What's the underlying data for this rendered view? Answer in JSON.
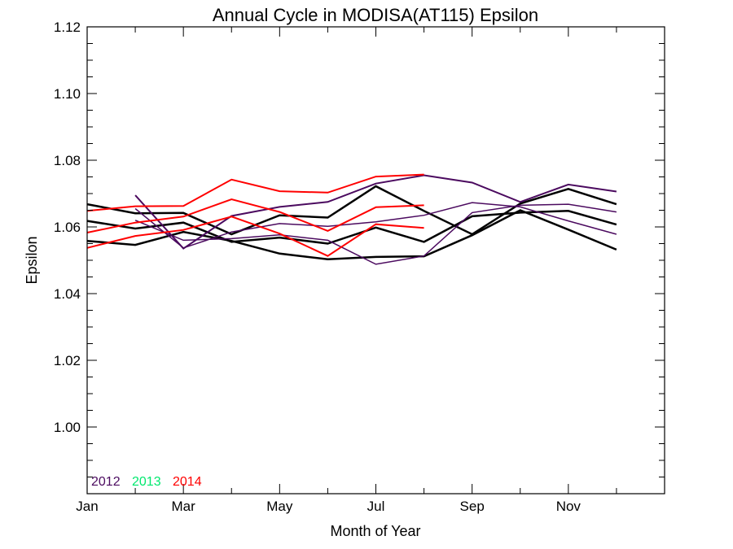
{
  "chart_data": {
    "type": "line",
    "title": "Annual Cycle in MODISA(AT115) Epsilon",
    "xlabel": "Month of Year",
    "ylabel": "Epsilon",
    "xlim": [
      1,
      13
    ],
    "ylim": [
      0.98,
      1.12
    ],
    "x_ticks": [
      {
        "value": 1,
        "label": "Jan"
      },
      {
        "value": 3,
        "label": "Mar"
      },
      {
        "value": 5,
        "label": "May"
      },
      {
        "value": 7,
        "label": "Jul"
      },
      {
        "value": 9,
        "label": "Sep"
      },
      {
        "value": 11,
        "label": "Nov"
      }
    ],
    "y_ticks": [
      {
        "value": 1.0,
        "label": "1.00"
      },
      {
        "value": 1.02,
        "label": "1.02"
      },
      {
        "value": 1.04,
        "label": "1.04"
      },
      {
        "value": 1.06,
        "label": "1.06"
      },
      {
        "value": 1.08,
        "label": "1.08"
      },
      {
        "value": 1.1,
        "label": "1.10"
      },
      {
        "value": 1.12,
        "label": "1.12"
      }
    ],
    "legend": {
      "placement": "bottom-left",
      "entries": [
        {
          "label": "2012",
          "color": "#4b0a5f"
        },
        {
          "label": "2013",
          "color": "#00e86e"
        },
        {
          "label": "2014",
          "color": "#ff0000"
        }
      ]
    },
    "series": [
      {
        "color": "#000000",
        "width": 2.5,
        "x": [
          1,
          2,
          3,
          4,
          5,
          6,
          7,
          8,
          9,
          10,
          11,
          12
        ],
        "y": [
          1.0668,
          1.0641,
          1.0642,
          1.0578,
          1.0635,
          1.0628,
          1.0722,
          1.0648,
          1.0578,
          1.067,
          1.0714,
          1.0668
        ]
      },
      {
        "color": "#000000",
        "width": 2.5,
        "x": [
          1,
          2,
          3,
          4,
          5,
          6,
          7,
          8,
          9,
          10,
          11,
          12
        ],
        "y": [
          1.0618,
          1.0595,
          1.0613,
          1.0555,
          1.0568,
          1.055,
          1.0598,
          1.0555,
          1.0632,
          1.0643,
          1.0648,
          1.0607
        ]
      },
      {
        "color": "#000000",
        "width": 2.5,
        "x": [
          1,
          2,
          3,
          4,
          5,
          6,
          7,
          8,
          9,
          10,
          11,
          12
        ],
        "y": [
          1.0558,
          1.0546,
          1.0585,
          1.0558,
          1.052,
          1.0503,
          1.051,
          1.0512,
          1.0575,
          1.065,
          1.0592,
          1.0532
        ]
      },
      {
        "color": "#4b0a5f",
        "width": 2,
        "x": [
          2,
          3,
          4,
          5,
          6,
          7,
          8,
          9,
          10,
          11,
          12
        ],
        "y": [
          1.0695,
          1.0535,
          1.0633,
          1.066,
          1.0675,
          1.073,
          1.0755,
          1.0733,
          1.0675,
          1.0727,
          1.0706
        ]
      },
      {
        "color": "#4b0a5f",
        "width": 1.5,
        "x": [
          2,
          3,
          4,
          5,
          6,
          7,
          8,
          9,
          10,
          11,
          12
        ],
        "y": [
          1.0655,
          1.0537,
          1.0585,
          1.061,
          1.0602,
          1.0615,
          1.0635,
          1.0673,
          1.066,
          1.0618,
          1.0578
        ]
      },
      {
        "color": "#4b0a5f",
        "width": 1.5,
        "x": [
          2,
          3,
          4,
          5,
          6,
          7,
          8,
          9,
          10,
          11,
          12
        ],
        "y": [
          1.062,
          1.056,
          1.0565,
          1.0576,
          1.056,
          1.0488,
          1.0513,
          1.0643,
          1.0665,
          1.0668,
          1.0645
        ]
      },
      {
        "color": "#ff0000",
        "width": 2,
        "x": [
          1,
          2,
          3,
          4,
          5,
          6,
          7,
          8
        ],
        "y": [
          1.0648,
          1.0662,
          1.0663,
          1.0742,
          1.0707,
          1.0703,
          1.0751,
          1.0757
        ]
      },
      {
        "color": "#ff0000",
        "width": 2,
        "x": [
          1,
          2,
          3,
          4,
          5,
          6,
          7,
          8
        ],
        "y": [
          1.0583,
          1.0613,
          1.0631,
          1.0683,
          1.0645,
          1.0588,
          1.0659,
          1.0665
        ]
      },
      {
        "color": "#ff0000",
        "width": 2,
        "x": [
          1,
          2,
          3,
          4,
          5,
          6,
          7,
          8
        ],
        "y": [
          1.0537,
          1.0573,
          1.0591,
          1.0631,
          1.058,
          1.0513,
          1.0608,
          1.0597
        ]
      }
    ]
  }
}
